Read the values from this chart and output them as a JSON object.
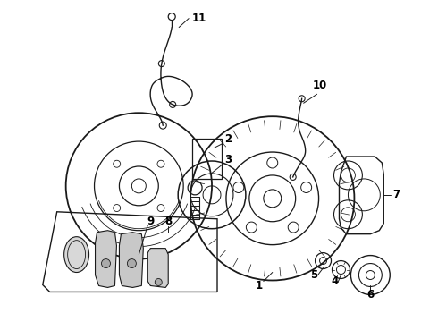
{
  "background_color": "#ffffff",
  "line_color": "#1a1a1a",
  "text_color": "#000000",
  "fig_width": 4.9,
  "fig_height": 3.6,
  "dpi": 100
}
